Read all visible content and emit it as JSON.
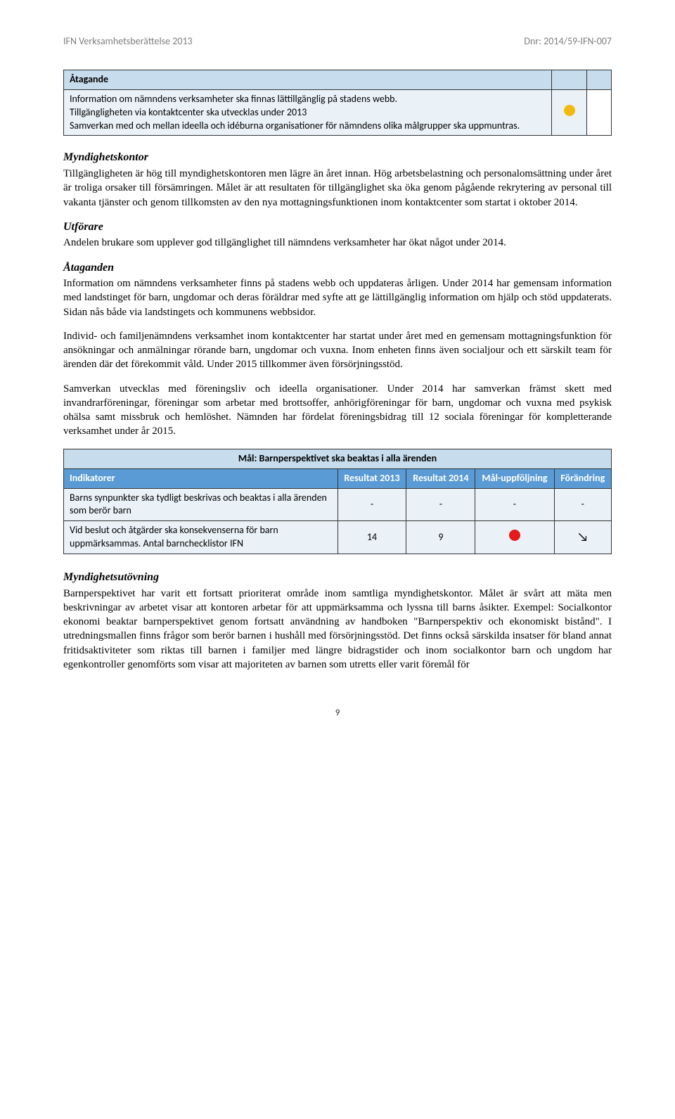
{
  "header": {
    "left": "IFN Verksamhetsberättelse 2013",
    "right": "Dnr: 2014/59-IFN-007"
  },
  "table1": {
    "header": "Åtagande",
    "content": "Information om nämndens verksamheter ska finnas lättillgänglig på stadens webb.\nTillgängligheten via kontaktcenter ska utvecklas under 2013\nSamverkan med och mellan ideella och idéburna organisationer för nämndens olika målgrupper ska uppmuntras.",
    "status_color": "#f2b90f"
  },
  "sections": [
    {
      "heading": "Myndighetskontor",
      "paragraphs": [
        "Tillgängligheten är hög till myndighetskontoren men lägre än året innan. Hög arbetsbelastning och personalomsättning under året är troliga orsaker till försämringen. Målet är att resultaten för tillgänglighet ska öka genom pågående rekrytering av personal till vakanta tjänster och genom tillkomsten av den nya mottagningsfunktionen inom kontaktcenter som startat i oktober 2014."
      ]
    },
    {
      "heading": "Utförare",
      "paragraphs": [
        "Andelen brukare som upplever god tillgänglighet till nämndens verksamheter har ökat något under 2014."
      ]
    },
    {
      "heading": "Åtaganden",
      "paragraphs": [
        "Information om nämndens verksamheter finns på stadens webb och uppdateras årligen. Under 2014 har gemensam information med landstinget för barn, ungdomar och deras föräldrar med syfte att ge lättillgänglig information om hjälp och stöd uppdaterats. Sidan nås både via landstingets och kommunens webbsidor.",
        "Individ- och familjenämndens verksamhet inom kontaktcenter har startat under året med en gemensam mottagningsfunktion för ansökningar och anmälningar rörande barn, ungdomar och vuxna. Inom enheten finns även socialjour och ett särskilt team för ärenden där det förekommit våld. Under 2015 tillkommer även försörjningsstöd.",
        "Samverkan utvecklas med föreningsliv och ideella organisationer. Under 2014 har samverkan främst skett med invandrarföreningar, föreningar som arbetar med brottsoffer, anhörigföreningar för barn, ungdomar och vuxna med psykisk ohälsa samt missbruk och hemlöshet. Nämnden har fördelat föreningsbidrag till 12 sociala föreningar för kompletterande verksamhet under år 2015."
      ]
    }
  ],
  "table2": {
    "title": "Mål: Barnperspektivet ska beaktas i alla ärenden",
    "columns": [
      "Indikatorer",
      "Resultat 2013",
      "Resultat 2014",
      "Mål-uppföljning",
      "Förändring"
    ],
    "rows": [
      {
        "indicator": "Barns synpunkter ska tydligt beskrivas och beaktas i alla ärenden som berör barn",
        "r2013": "-",
        "r2014": "-",
        "mal": "-",
        "forandring": "-"
      },
      {
        "indicator": "Vid beslut och åtgärder ska konsekvenserna för barn uppmärksammas. Antal barnchecklistor IFN",
        "r2013": "14",
        "r2014": "9",
        "mal_color": "#e51b1b",
        "forandring_arrow": "↘"
      }
    ]
  },
  "section2": {
    "heading": "Myndighetsutövning",
    "paragraph": "Barnperspektivet har varit ett fortsatt prioriterat område inom samtliga myndighetskontor. Målet är svårt att mäta men beskrivningar av arbetet visar att kontoren arbetar för att uppmärksamma och lyssna till barns åsikter. Exempel: Socialkontor ekonomi beaktar barnperspektivet genom fortsatt användning av handboken \"Barnperspektiv och ekonomiskt bistånd\". I utredningsmallen finns frågor som berör barnen i hushåll med försörjningsstöd. Det finns också särskilda insatser för bland annat fritidsaktiviteter som riktas till barnen i familjer med längre bidragstider och inom socialkontor barn och ungdom har egenkontroller genomförts som visar att majoriteten av barnen som utretts eller varit föremål för"
  },
  "page_number": "9"
}
